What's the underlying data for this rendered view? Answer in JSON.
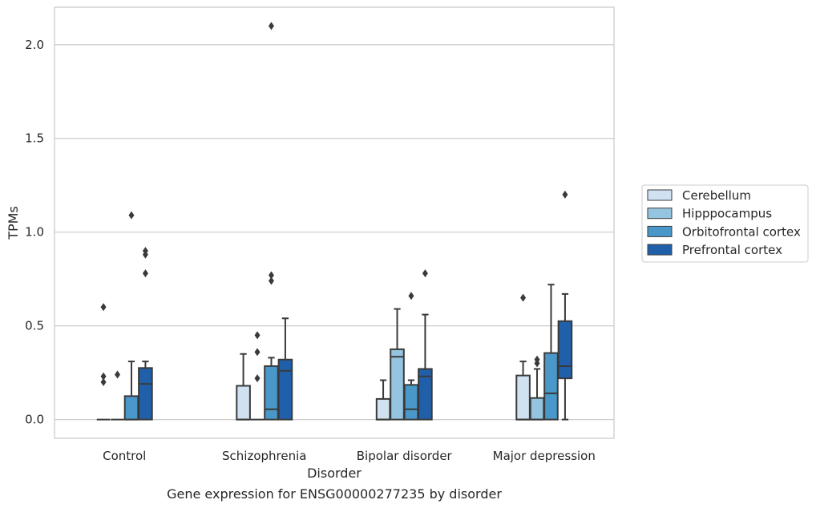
{
  "chart_data": {
    "type": "box",
    "caption": "Gene expression for ENSG00000277235 by disorder",
    "xlabel": "Disorder",
    "ylabel": "TPMs",
    "ylim": [
      -0.1,
      2.2
    ],
    "yticks": [
      0.0,
      0.5,
      1.0,
      1.5,
      2.0
    ],
    "ytick_labels": [
      "0.0",
      "0.5",
      "1.0",
      "1.5",
      "2.0"
    ],
    "grid": true,
    "legend_position": "right",
    "categories": [
      "Control",
      "Schizophrenia",
      "Bipolar disorder",
      "Major depression"
    ],
    "series": [
      {
        "name": "Cerebellum",
        "color": "#d0e1f2",
        "boxes": [
          {
            "q1": 0.0,
            "median": 0.0,
            "q3": 0.0,
            "whislo": 0.0,
            "whishi": 0.0,
            "fliers": [
              0.6,
              0.23,
              0.2
            ]
          },
          {
            "q1": 0.0,
            "median": 0.0,
            "q3": 0.18,
            "whislo": 0.0,
            "whishi": 0.35,
            "fliers": []
          },
          {
            "q1": 0.0,
            "median": 0.0,
            "q3": 0.11,
            "whislo": 0.0,
            "whishi": 0.21,
            "fliers": []
          },
          {
            "q1": 0.0,
            "median": 0.0,
            "q3": 0.235,
            "whislo": 0.0,
            "whishi": 0.31,
            "fliers": [
              0.65
            ]
          }
        ]
      },
      {
        "name": "Hipppocampus",
        "color": "#94c4df",
        "boxes": [
          {
            "q1": 0.0,
            "median": 0.0,
            "q3": 0.0,
            "whislo": 0.0,
            "whishi": 0.0,
            "fliers": [
              0.24
            ]
          },
          {
            "q1": 0.0,
            "median": 0.0,
            "q3": 0.0,
            "whislo": 0.0,
            "whishi": 0.0,
            "fliers": [
              0.45,
              0.36,
              0.22
            ]
          },
          {
            "q1": 0.0,
            "median": 0.335,
            "q3": 0.375,
            "whislo": 0.0,
            "whishi": 0.59,
            "fliers": []
          },
          {
            "q1": 0.0,
            "median": 0.0,
            "q3": 0.115,
            "whislo": 0.0,
            "whishi": 0.27,
            "fliers": [
              0.32,
              0.3
            ]
          }
        ]
      },
      {
        "name": "Orbitofrontal cortex",
        "color": "#4a98c9",
        "boxes": [
          {
            "q1": 0.0,
            "median": 0.0,
            "q3": 0.125,
            "whislo": 0.0,
            "whishi": 0.31,
            "fliers": [
              1.09
            ]
          },
          {
            "q1": 0.0,
            "median": 0.055,
            "q3": 0.285,
            "whislo": 0.0,
            "whishi": 0.33,
            "fliers": [
              2.1,
              0.77,
              0.74
            ]
          },
          {
            "q1": 0.0,
            "median": 0.055,
            "q3": 0.185,
            "whislo": 0.0,
            "whishi": 0.21,
            "fliers": [
              0.66
            ]
          },
          {
            "q1": 0.0,
            "median": 0.14,
            "q3": 0.355,
            "whislo": 0.0,
            "whishi": 0.72,
            "fliers": []
          }
        ]
      },
      {
        "name": "Prefrontal cortex",
        "color": "#2060aa",
        "boxes": [
          {
            "q1": 0.0,
            "median": 0.19,
            "q3": 0.275,
            "whislo": 0.0,
            "whishi": 0.31,
            "fliers": [
              0.9,
              0.88,
              0.78
            ]
          },
          {
            "q1": 0.0,
            "median": 0.26,
            "q3": 0.32,
            "whislo": 0.0,
            "whishi": 0.54,
            "fliers": []
          },
          {
            "q1": 0.0,
            "median": 0.23,
            "q3": 0.27,
            "whislo": 0.0,
            "whishi": 0.56,
            "fliers": [
              0.78
            ]
          },
          {
            "q1": 0.22,
            "median": 0.285,
            "q3": 0.525,
            "whislo": 0.0,
            "whishi": 0.67,
            "fliers": [
              1.2
            ]
          }
        ]
      }
    ]
  }
}
